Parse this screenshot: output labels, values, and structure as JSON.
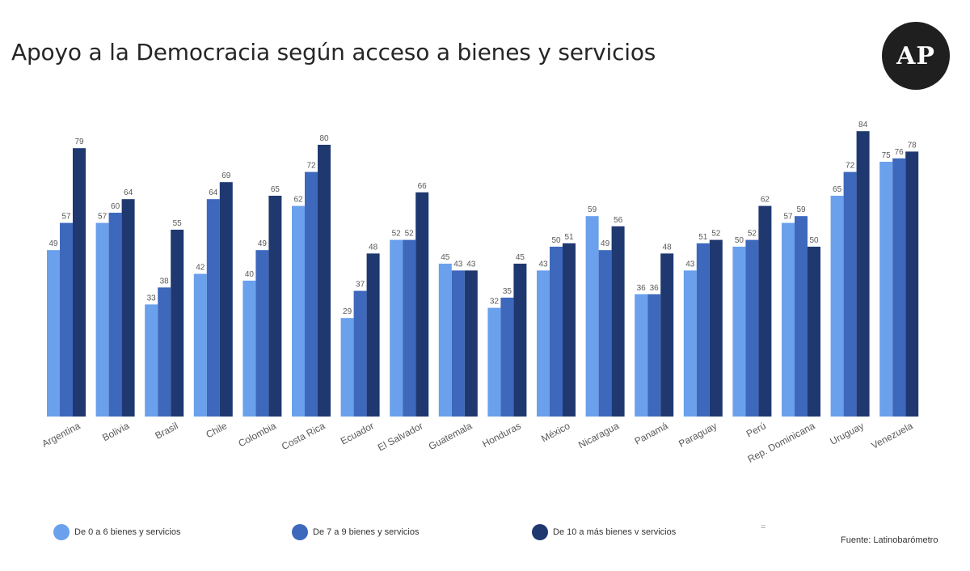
{
  "header": {
    "title": "Apoyo a la Democracia según acceso a bienes y servicios",
    "logo_text": "AP"
  },
  "footer": {
    "source": "Fuente: Latinobarómetro",
    "separator": "="
  },
  "colors": {
    "series_1": "#6aa0ec",
    "series_2": "#3d68bc",
    "series_3": "#1f3970",
    "tick_label": "#595959",
    "data_label": "#595959"
  },
  "chart_data": {
    "type": "bar",
    "title": "Apoyo a la Democracia según acceso a bienes y servicios",
    "legend_position": "bottom",
    "grid": false,
    "ylim": [
      0,
      100
    ],
    "categories": [
      "Argentina",
      "Bolivia",
      "Brasil",
      "Chile",
      "Colombia",
      "Costa Rica",
      "Ecuador",
      "El Salvador",
      "Guatemala",
      "Honduras",
      "México",
      "Nicaragua",
      "Panamá",
      "Paraguay",
      "Perú",
      "Rep. Dominicana",
      "Uruguay",
      "Venezuela"
    ],
    "series": [
      {
        "name": "De 0 a 6 bienes y servicios",
        "values": [
          49,
          57,
          33,
          42,
          40,
          62,
          29,
          52,
          45,
          32,
          43,
          59,
          36,
          43,
          50,
          57,
          65,
          75
        ]
      },
      {
        "name": "De 7 a 9 bienes y servicios",
        "values": [
          57,
          60,
          38,
          64,
          49,
          72,
          37,
          52,
          43,
          35,
          50,
          49,
          36,
          51,
          52,
          59,
          72,
          76
        ]
      },
      {
        "name": "De 10 a más bienes v servicios",
        "values": [
          79,
          64,
          55,
          69,
          65,
          80,
          48,
          66,
          43,
          45,
          51,
          56,
          48,
          52,
          62,
          50,
          84,
          78
        ]
      }
    ]
  }
}
